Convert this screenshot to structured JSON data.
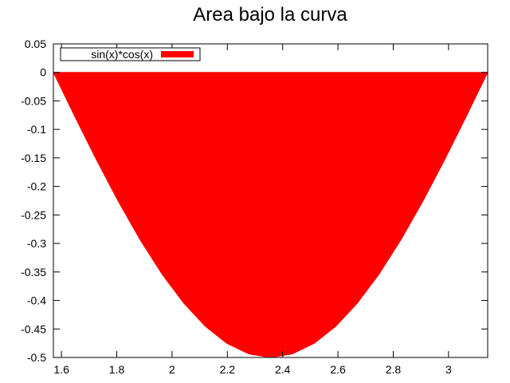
{
  "chart_data": {
    "type": "area",
    "title": "Area bajo la curva",
    "xlabel": "",
    "ylabel": "",
    "xlim": [
      1.5708,
      3.1416
    ],
    "ylim": [
      -0.5,
      0.05
    ],
    "x_ticks": [
      1.6,
      1.8,
      2,
      2.2,
      2.4,
      2.6,
      2.8,
      3
    ],
    "y_ticks": [
      0.05,
      0,
      -0.05,
      -0.1,
      -0.15,
      -0.2,
      -0.25,
      -0.3,
      -0.35,
      -0.4,
      -0.45,
      -0.5
    ],
    "grid": false,
    "legend_position": "top-left",
    "series": [
      {
        "name": "sin(x)*cos(x)",
        "color": "#ff0000",
        "x": [
          1.5708,
          1.6493,
          1.7279,
          1.8064,
          1.885,
          1.9635,
          2.042,
          2.1206,
          2.1991,
          2.2777,
          2.3562,
          2.4347,
          2.5133,
          2.5918,
          2.6704,
          2.7489,
          2.8274,
          2.906,
          2.9845,
          3.0631,
          3.1416
        ],
        "y": [
          0,
          -0.0782,
          -0.1545,
          -0.227,
          -0.2939,
          -0.3536,
          -0.4045,
          -0.4455,
          -0.4755,
          -0.4938,
          -0.5,
          -0.4938,
          -0.4755,
          -0.4455,
          -0.4045,
          -0.3536,
          -0.2939,
          -0.227,
          -0.1545,
          -0.0782,
          0
        ]
      }
    ]
  }
}
